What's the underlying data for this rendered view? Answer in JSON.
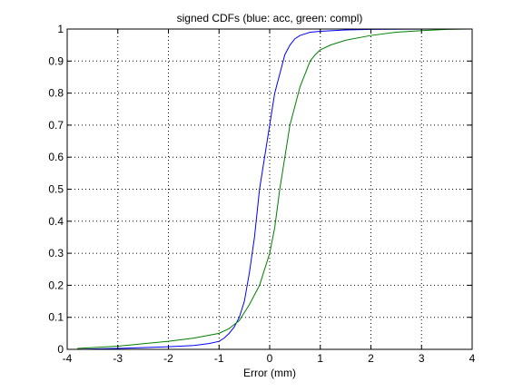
{
  "chart_data": {
    "type": "line",
    "title": "signed CDFs (blue: acc, green: compl)",
    "xlabel": "Error (mm)",
    "ylabel": "",
    "xlim": [
      -4,
      4
    ],
    "ylim": [
      0,
      1
    ],
    "xticks": [
      -4,
      -3,
      -2,
      -1,
      0,
      1,
      2,
      3,
      4
    ],
    "yticks": [
      0,
      0.1,
      0.2,
      0.3,
      0.4,
      0.5,
      0.6,
      0.7,
      0.8,
      0.9,
      1
    ],
    "xtick_labels": [
      "-4",
      "-3",
      "-2",
      "-1",
      "0",
      "1",
      "2",
      "3",
      "4"
    ],
    "ytick_labels": [
      "0",
      "0.1",
      "0.2",
      "0.3",
      "0.4",
      "0.5",
      "0.6",
      "0.7",
      "0.8",
      "0.9",
      "1"
    ],
    "grid": true,
    "series": [
      {
        "color": "#0000ff",
        "x": [
          -3.8,
          -3.0,
          -2.0,
          -1.5,
          -1.2,
          -1.0,
          -0.9,
          -0.8,
          -0.7,
          -0.6,
          -0.5,
          -0.4,
          -0.3,
          -0.2,
          -0.1,
          0.0,
          0.1,
          0.2,
          0.3,
          0.4,
          0.5,
          0.6,
          0.7,
          0.8,
          1.0,
          1.5,
          2.0,
          3.3
        ],
        "y": [
          0.0,
          0.003,
          0.008,
          0.012,
          0.018,
          0.025,
          0.035,
          0.05,
          0.07,
          0.1,
          0.15,
          0.24,
          0.35,
          0.5,
          0.6,
          0.7,
          0.8,
          0.86,
          0.92,
          0.95,
          0.97,
          0.98,
          0.985,
          0.99,
          0.993,
          0.997,
          0.999,
          1.0
        ]
      },
      {
        "color": "#008000",
        "x": [
          -3.8,
          -3.0,
          -2.0,
          -1.5,
          -1.0,
          -0.8,
          -0.6,
          -0.4,
          -0.2,
          0.0,
          0.1,
          0.2,
          0.3,
          0.4,
          0.5,
          0.6,
          0.7,
          0.8,
          0.9,
          1.0,
          1.2,
          1.5,
          2.0,
          2.5,
          3.0,
          3.5,
          4.0
        ],
        "y": [
          0.003,
          0.01,
          0.025,
          0.035,
          0.05,
          0.065,
          0.09,
          0.14,
          0.2,
          0.3,
          0.38,
          0.5,
          0.6,
          0.7,
          0.76,
          0.82,
          0.86,
          0.9,
          0.92,
          0.935,
          0.95,
          0.965,
          0.98,
          0.99,
          0.995,
          0.999,
          1.0
        ]
      }
    ]
  }
}
